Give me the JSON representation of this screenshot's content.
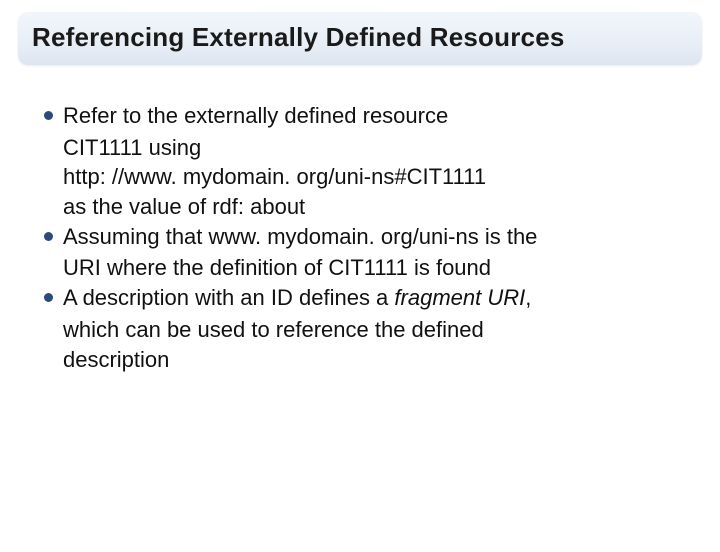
{
  "title": "Referencing Externally Defined Resources",
  "bullet_color": "#2b4a7a",
  "text_color": "#111111",
  "title_bg_gradient_top": "#f2f6fb",
  "title_bg_gradient_bottom": "#dde5f0",
  "title_fontsize": 26,
  "body_fontsize": 22,
  "bullets": [
    {
      "lines": [
        "Refer to the externally defined resource",
        "CIT1111 using",
        "http: //www. mydomain. org/uni-ns#CIT1111",
        "as the value of rdf: about"
      ]
    },
    {
      "lines": [
        "Assuming that www. mydomain. org/uni-ns is the",
        "URI where the definition of CIT1111 is found"
      ]
    },
    {
      "line_prefix": "A description with an ID defines a ",
      "italic_part": "fragment URI",
      "line_suffix": ",",
      "lines_after": [
        "which can be used to reference the defined",
        "description"
      ]
    }
  ]
}
